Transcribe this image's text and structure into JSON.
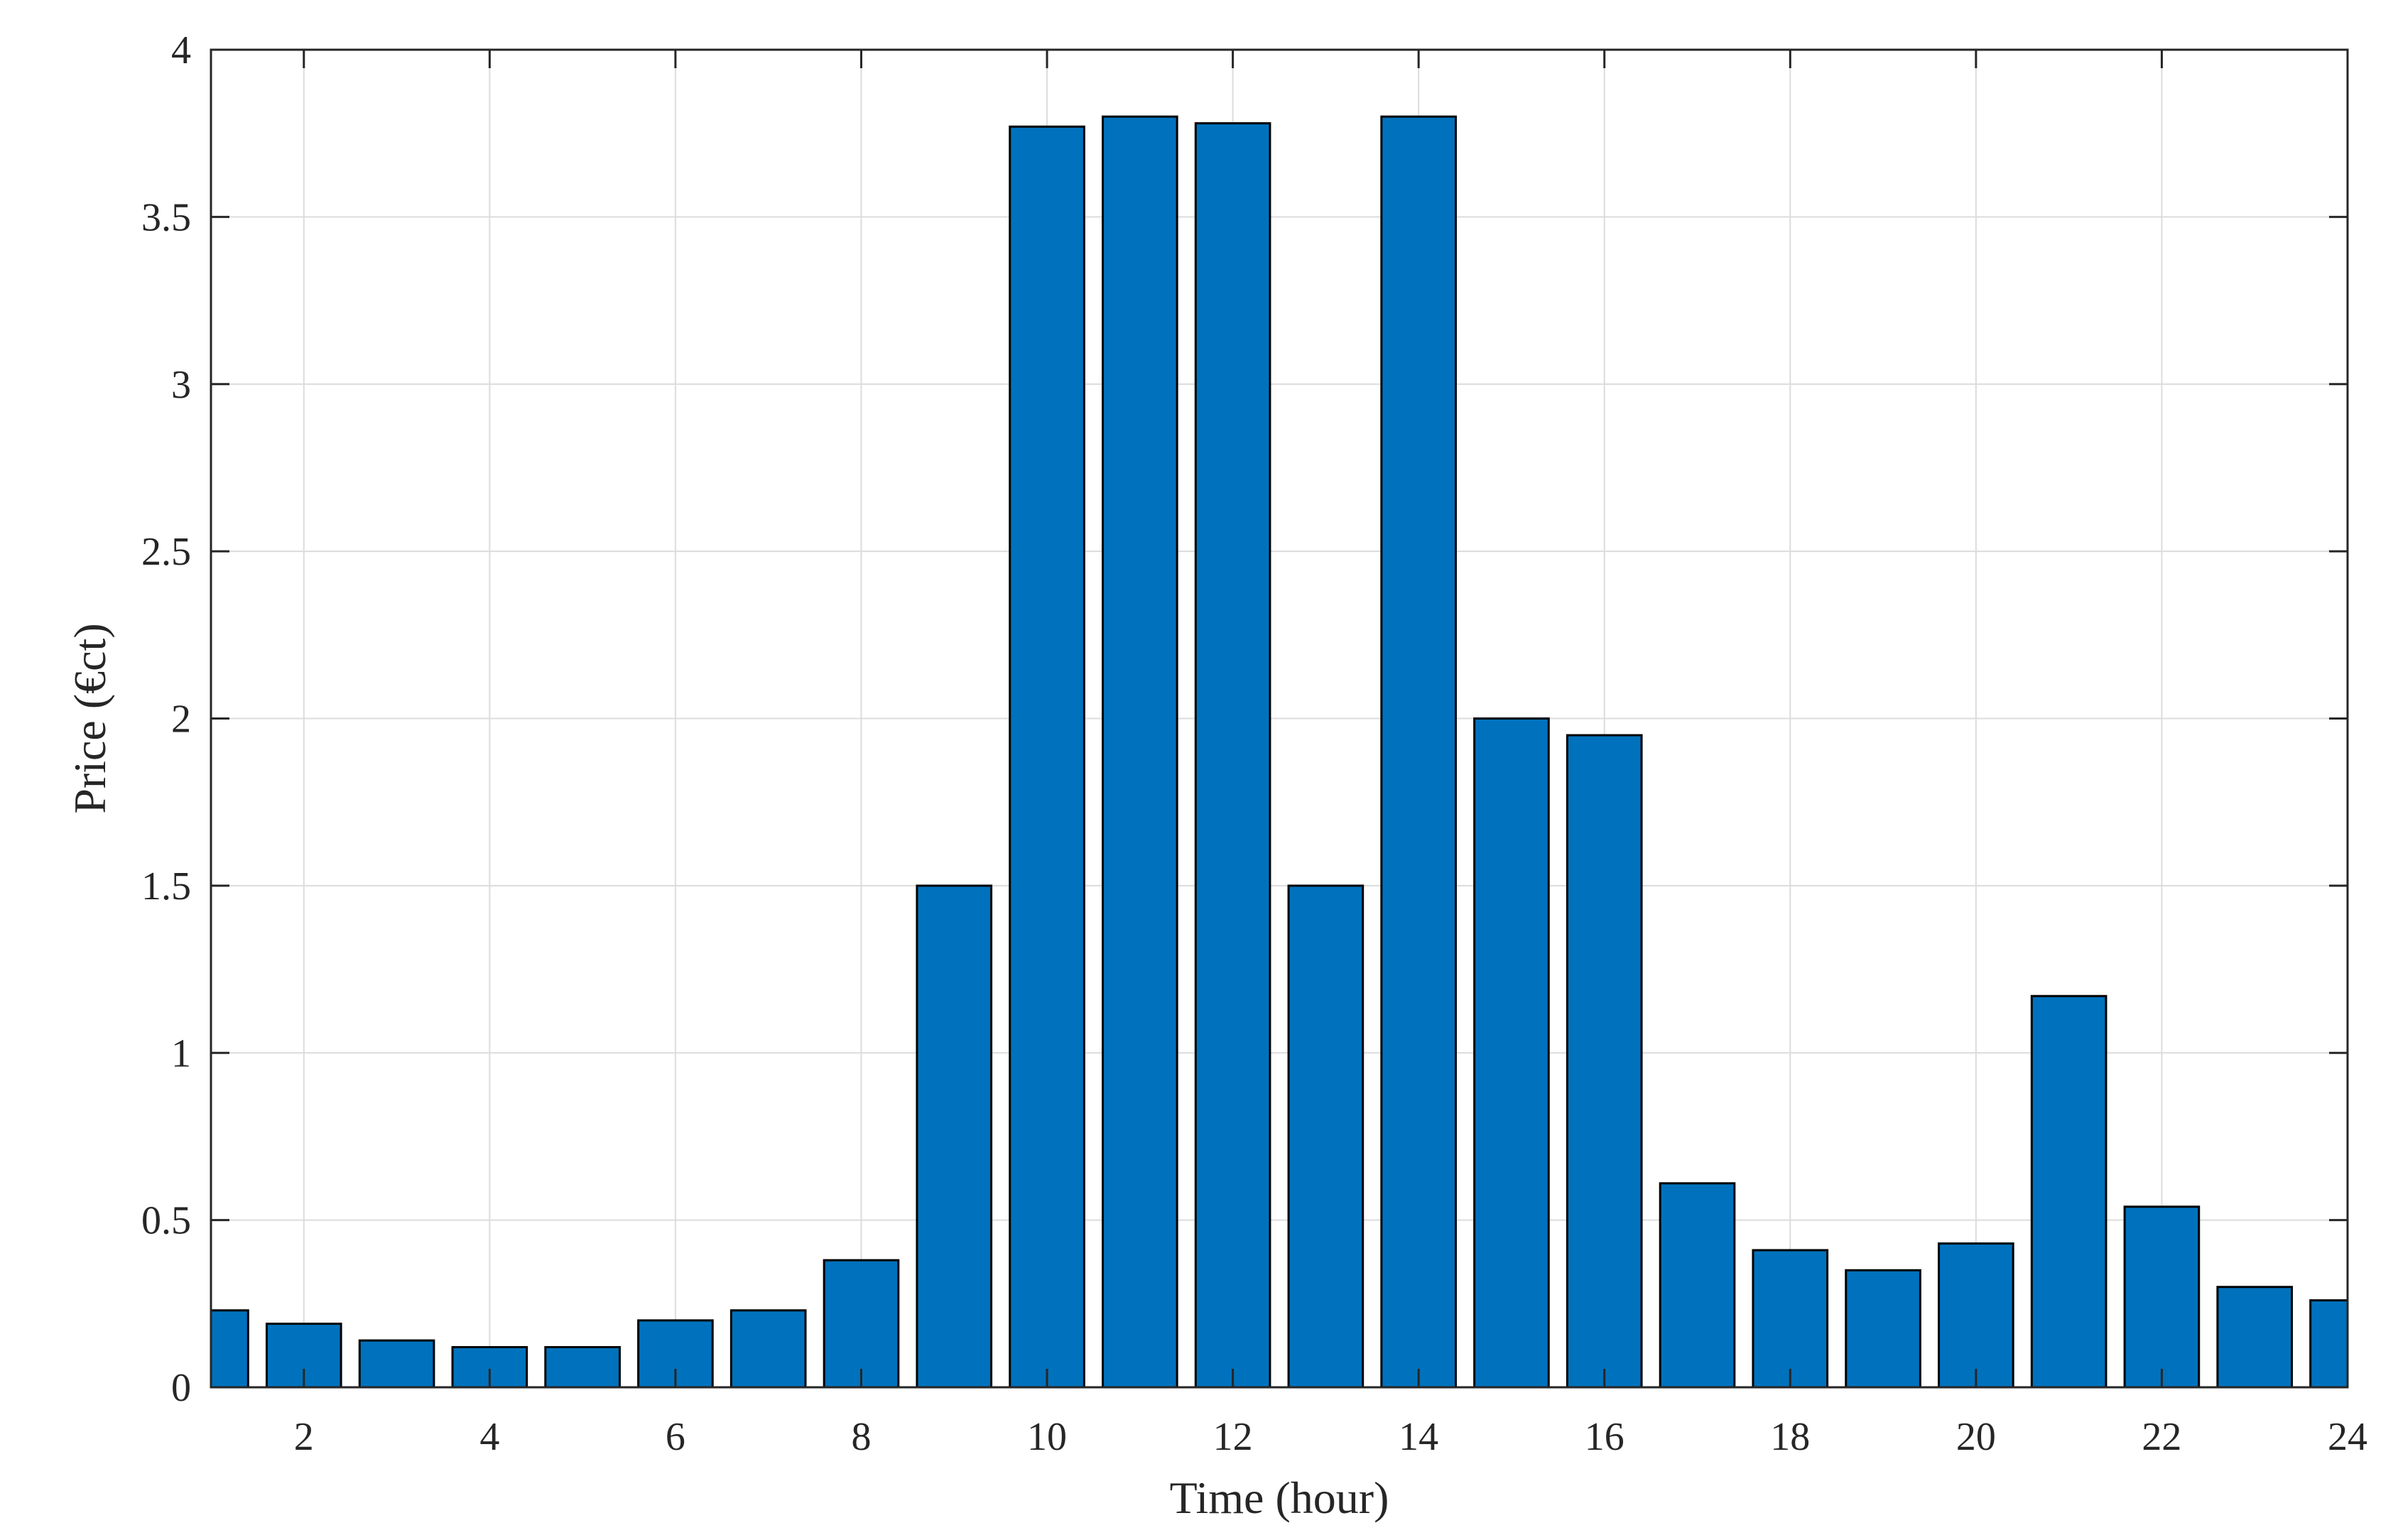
{
  "chart_data": {
    "type": "bar",
    "title": "",
    "xlabel": "Time (hour)",
    "ylabel": "Price (€ct)",
    "x": [
      1,
      2,
      3,
      4,
      5,
      6,
      7,
      8,
      9,
      10,
      11,
      12,
      13,
      14,
      15,
      16,
      17,
      18,
      19,
      20,
      21,
      22,
      23,
      24
    ],
    "values": [
      0.23,
      0.19,
      0.14,
      0.12,
      0.12,
      0.2,
      0.23,
      0.38,
      1.5,
      3.77,
      3.8,
      3.78,
      1.5,
      3.8,
      2.0,
      1.95,
      0.61,
      0.41,
      0.35,
      0.43,
      1.17,
      0.54,
      0.3,
      0.26
    ],
    "xlim": [
      1,
      24
    ],
    "ylim": [
      0,
      4
    ],
    "xticks": [
      2,
      4,
      6,
      8,
      10,
      12,
      14,
      16,
      18,
      20,
      22,
      24
    ],
    "yticks": [
      0,
      0.5,
      1,
      1.5,
      2,
      2.5,
      3,
      3.5,
      4
    ],
    "grid": true,
    "legend": "none",
    "colors": {
      "bar_fill": "#0072BD",
      "bar_edge": "#000000",
      "grid": "#dcdcdc",
      "axis": "#262626"
    }
  }
}
